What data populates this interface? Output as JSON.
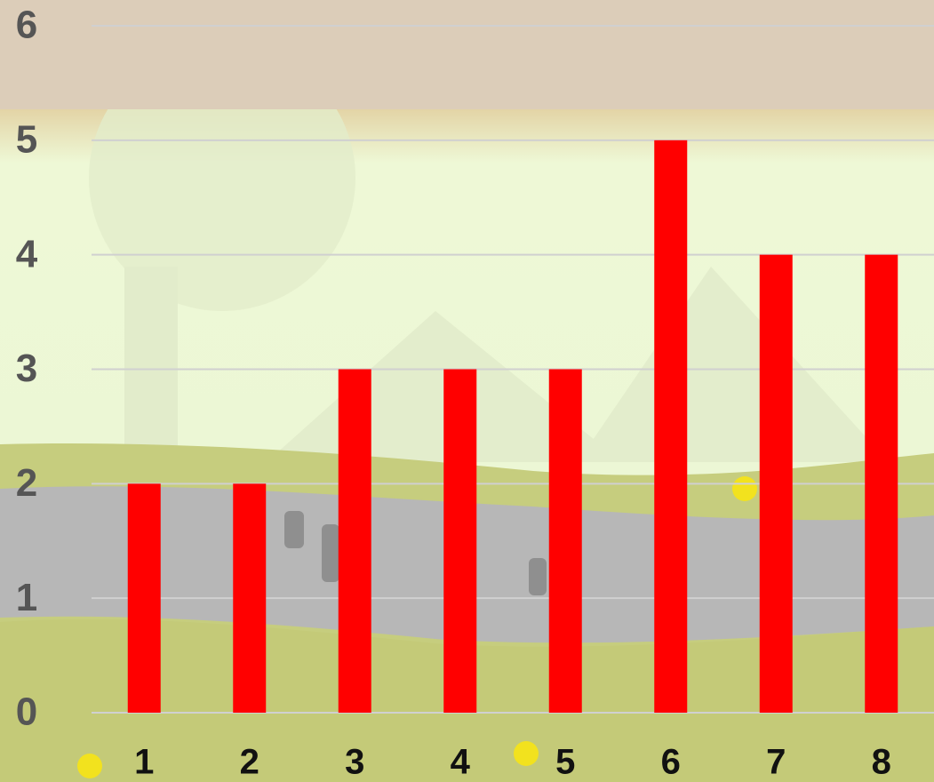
{
  "chart_data": {
    "type": "bar",
    "categories": [
      "1",
      "2",
      "3",
      "4",
      "5",
      "6",
      "7",
      "8"
    ],
    "values": [
      2,
      2,
      3,
      3,
      3,
      5,
      4,
      4
    ],
    "color": "#ff0000",
    "ylim": [
      0,
      6
    ],
    "yticks": [
      0,
      1,
      2,
      3,
      4,
      5,
      6
    ],
    "grid": true
  }
}
